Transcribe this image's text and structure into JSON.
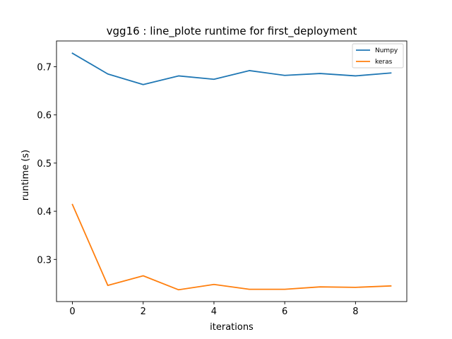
{
  "chart_data": {
    "type": "line",
    "title": "vgg16 : line_plote runtime  for first_deployment",
    "xlabel": "iterations",
    "ylabel": "runtime (s)",
    "xlim": [
      -0.45,
      9.45
    ],
    "ylim": [
      0.2125,
      0.7535
    ],
    "xticks": [
      0,
      2,
      4,
      6,
      8
    ],
    "yticks": [
      0.3,
      0.4,
      0.5,
      0.6,
      0.7
    ],
    "xtick_labels": [
      "0",
      "2",
      "4",
      "6",
      "8"
    ],
    "ytick_labels": [
      "0.3",
      "0.4",
      "0.5",
      "0.6",
      "0.7"
    ],
    "grid": false,
    "legend_position": "top-right",
    "x": [
      0,
      1,
      2,
      3,
      4,
      5,
      6,
      7,
      8,
      9
    ],
    "series": [
      {
        "name": "Numpy",
        "color": "#1f77b4",
        "values": [
          0.728,
          0.685,
          0.663,
          0.681,
          0.674,
          0.692,
          0.682,
          0.686,
          0.681,
          0.687
        ]
      },
      {
        "name": "keras",
        "color": "#ff7f0e",
        "values": [
          0.414,
          0.246,
          0.266,
          0.237,
          0.248,
          0.238,
          0.238,
          0.243,
          0.242,
          0.245
        ]
      }
    ]
  }
}
